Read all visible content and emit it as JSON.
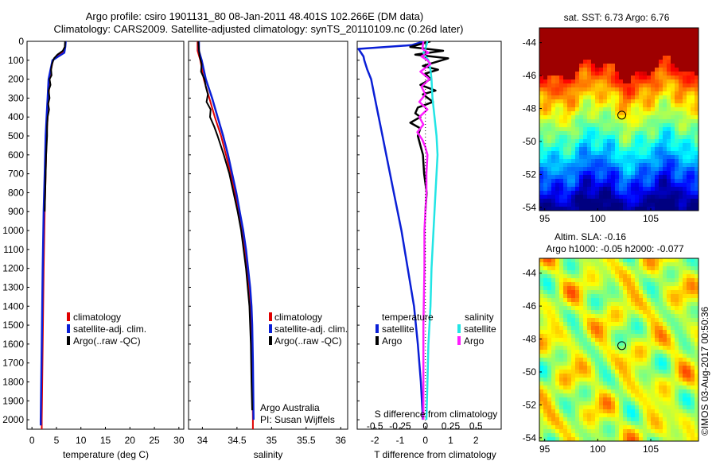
{
  "header": {
    "line1": "Argo profile: csiro 1901131_80 08-Jan-2011 48.401S 102.266E (DM data)",
    "line2": "Climatology: CARS2009. Satellite-adjusted climatology: synTS_20110109.nc (0.26d later)"
  },
  "colors": {
    "climatology": "#e00000",
    "satellite": "#0a1fd6",
    "argo": "#000000",
    "argo_s": "#ff1cff",
    "satellite_s": "#22e5e5"
  },
  "chart_data": [
    {
      "type": "line",
      "panel": "temperature",
      "xlabel": "temperature (deg C)",
      "xlim": [
        -1,
        31
      ],
      "ylim": [
        2050,
        0
      ],
      "xticks": [
        0,
        5,
        10,
        15,
        20,
        25,
        30
      ],
      "yticks": [
        0,
        100,
        200,
        300,
        400,
        500,
        600,
        700,
        800,
        900,
        1000,
        1100,
        1200,
        1300,
        1400,
        1500,
        1600,
        1700,
        1800,
        1900,
        2000
      ],
      "legend": {
        "placement": "center-right",
        "entries": [
          "climatology",
          "satellite-adj. clim.",
          "Argo(..raw -QC)"
        ]
      },
      "series": [
        {
          "name": "climatology",
          "depth": [
            0,
            30,
            60,
            80,
            100,
            150,
            200,
            250,
            300,
            400,
            500,
            700,
            900,
            1200,
            1600,
            2000,
            2050
          ],
          "values": [
            6.9,
            6.7,
            6.2,
            5.0,
            4.3,
            3.9,
            3.6,
            3.5,
            3.4,
            3.2,
            3.0,
            2.8,
            2.6,
            2.4,
            2.2,
            2.0,
            2.0
          ]
        },
        {
          "name": "satellite-adj. clim.",
          "depth": [
            0,
            30,
            60,
            80,
            100,
            150,
            200,
            250,
            300,
            400,
            500,
            700,
            900,
            1200,
            1600,
            2000,
            2030
          ],
          "values": [
            6.9,
            6.8,
            6.6,
            5.4,
            4.2,
            3.8,
            3.4,
            3.3,
            3.2,
            3.0,
            2.8,
            2.6,
            2.4,
            2.2,
            2.0,
            1.8,
            1.8
          ]
        },
        {
          "name": "Argo(..raw -QC)",
          "depth": [
            0,
            30,
            50,
            70,
            90,
            120,
            150,
            180,
            200,
            230,
            260,
            300,
            330,
            360,
            400,
            450,
            500,
            600,
            700,
            800,
            900
          ],
          "values": [
            6.76,
            6.7,
            6.3,
            5.2,
            4.5,
            4.1,
            3.9,
            4.0,
            3.6,
            3.8,
            3.4,
            3.6,
            3.3,
            3.5,
            3.2,
            3.1,
            3.1,
            2.9,
            2.8,
            2.7,
            2.6
          ]
        }
      ]
    },
    {
      "type": "line",
      "panel": "salinity",
      "xlabel": "salinity",
      "xlim": [
        33.8,
        36.1
      ],
      "ylim": [
        2050,
        0
      ],
      "xticks": [
        "34",
        "34.5",
        "35",
        "35.5",
        "36"
      ],
      "legend": {
        "placement": "center-right",
        "entries": [
          "climatology",
          "satellite-adj. clim.",
          "Argo(..raw -QC)"
        ]
      },
      "annotation": [
        "Argo Australia",
        "PI: Susan Wijffels"
      ],
      "series": [
        {
          "name": "climatology",
          "depth": [
            0,
            50,
            100,
            200,
            300,
            400,
            500,
            600,
            700,
            800,
            900,
            1000,
            1100,
            1200,
            1300,
            1400,
            1500,
            1700,
            2000,
            2050
          ],
          "values": [
            33.93,
            33.93,
            33.97,
            34.02,
            34.1,
            34.18,
            34.27,
            34.34,
            34.41,
            34.47,
            34.52,
            34.57,
            34.61,
            34.64,
            34.67,
            34.69,
            34.71,
            34.72,
            34.73,
            34.73
          ]
        },
        {
          "name": "satellite-adj. clim.",
          "depth": [
            0,
            50,
            100,
            200,
            300,
            400,
            500,
            600,
            700,
            800,
            900,
            1000,
            1100,
            1200,
            1300,
            1400,
            1500,
            1700,
            2000
          ],
          "values": [
            33.95,
            33.95,
            33.99,
            34.05,
            34.14,
            34.22,
            34.3,
            34.37,
            34.43,
            34.49,
            34.54,
            34.59,
            34.63,
            34.66,
            34.69,
            34.71,
            34.72,
            34.73,
            34.74
          ]
        },
        {
          "name": "Argo(..raw -QC)",
          "depth": [
            0,
            40,
            80,
            120,
            160,
            200,
            240,
            280,
            320,
            360,
            400,
            450,
            500,
            600,
            700,
            800,
            900,
            1000,
            1200,
            1400,
            1600,
            1800,
            1950
          ],
          "values": [
            33.94,
            33.95,
            33.96,
            33.99,
            33.98,
            34.03,
            34.05,
            34.08,
            34.06,
            34.12,
            34.11,
            34.17,
            34.22,
            34.31,
            34.39,
            34.45,
            34.51,
            34.56,
            34.63,
            34.68,
            34.7,
            34.71,
            34.72
          ]
        }
      ]
    },
    {
      "type": "line",
      "panel": "differences",
      "xlabel": "T difference from climatology",
      "x2label": "S difference from climatology",
      "xlim": [
        -2.7,
        3.0
      ],
      "ylim": [
        2050,
        0
      ],
      "xticks": [
        "-2",
        "-1",
        "0",
        "1",
        "2"
      ],
      "x2ticks": [
        "-0.5",
        "-0.25",
        "0",
        "0.25",
        "0.5"
      ],
      "legend": {
        "placement": "center",
        "headers": [
          "temperature",
          "salinity"
        ],
        "entries": [
          "satellite",
          "Argo",
          "satellite",
          "Argo"
        ]
      },
      "series": [
        {
          "name": "T satellite",
          "quantity": "temperature",
          "depth": [
            0,
            20,
            40,
            80,
            100,
            150,
            200,
            300,
            400,
            500,
            600,
            800,
            1000,
            1200,
            1400,
            1600,
            1800,
            2000
          ],
          "values": [
            -0.05,
            -0.55,
            -2.65,
            -2.45,
            -2.42,
            -2.3,
            -2.15,
            -2.0,
            -1.85,
            -1.7,
            -1.55,
            -1.25,
            -0.95,
            -0.7,
            -0.45,
            -0.3,
            -0.18,
            -0.1
          ]
        },
        {
          "name": "T Argo",
          "quantity": "temperature",
          "depth": [
            0,
            30,
            50,
            70,
            90,
            110,
            130,
            150,
            170,
            200,
            230,
            260,
            280,
            320,
            350,
            380,
            400,
            430,
            460,
            500,
            600,
            700,
            800,
            900
          ],
          "values": [
            0.2,
            -0.6,
            0.7,
            -0.4,
            0.9,
            0.4,
            -0.1,
            0.5,
            0.0,
            0.2,
            -0.2,
            0.4,
            -0.1,
            0.3,
            -0.3,
            -0.4,
            -0.2,
            -0.6,
            -0.2,
            -0.3,
            -0.1,
            -0.05,
            0.05,
            0.0
          ]
        },
        {
          "name": "S satellite",
          "quantity": "salinity",
          "depth": [
            0,
            40,
            60,
            80,
            100,
            150,
            200,
            300,
            400,
            500,
            600,
            800,
            1000,
            1200,
            1400,
            1600,
            1800,
            2000
          ],
          "values": [
            0.02,
            0.0,
            -0.02,
            0.0,
            0.03,
            0.05,
            0.06,
            0.07,
            0.09,
            0.11,
            0.12,
            0.1,
            0.08,
            0.06,
            0.05,
            0.03,
            0.02,
            0.01
          ]
        },
        {
          "name": "S Argo",
          "quantity": "salinity",
          "depth": [
            0,
            40,
            60,
            80,
            100,
            120,
            160,
            200,
            240,
            280,
            320,
            360,
            400,
            440,
            480,
            520,
            560,
            600,
            700,
            800,
            900,
            1000,
            1200,
            1500,
            1800,
            2000
          ],
          "values": [
            -0.02,
            -0.03,
            0.03,
            -0.04,
            0.02,
            0.05,
            -0.05,
            0.04,
            -0.04,
            0.0,
            -0.06,
            0.02,
            -0.06,
            -0.02,
            -0.08,
            -0.03,
            0.0,
            0.02,
            0.01,
            0.01,
            0.0,
            -0.01,
            -0.01,
            -0.02,
            -0.02,
            -0.02
          ]
        }
      ]
    },
    {
      "type": "heatmap",
      "panel": "sst_map",
      "title": "sat. SST: 6.73  Argo: 6.76",
      "xticks": [
        "95",
        "100",
        "105"
      ],
      "yticks": [
        "-44",
        "-46",
        "-48",
        "-50",
        "-52",
        "-54"
      ],
      "xlim": [
        94.5,
        109.5
      ],
      "ylim": [
        -54.2,
        -43.1
      ],
      "marker": {
        "lon": 102.266,
        "lat": -48.401
      }
    },
    {
      "type": "heatmap",
      "panel": "sla_map",
      "title": "Altim. SLA: -0.16",
      "subtitle": "Argo h1000: -0.05 h2000: -0.077",
      "xticks": [
        "95",
        "100",
        "105"
      ],
      "yticks": [
        "-44",
        "-46",
        "-48",
        "-50",
        "-52",
        "-54"
      ],
      "xlim": [
        94.5,
        109.5
      ],
      "ylim": [
        -54.2,
        -43.1
      ],
      "marker": {
        "lon": 102.266,
        "lat": -48.401
      }
    }
  ],
  "side_label": "©IMOS 03-Aug-2017 00:50:36"
}
